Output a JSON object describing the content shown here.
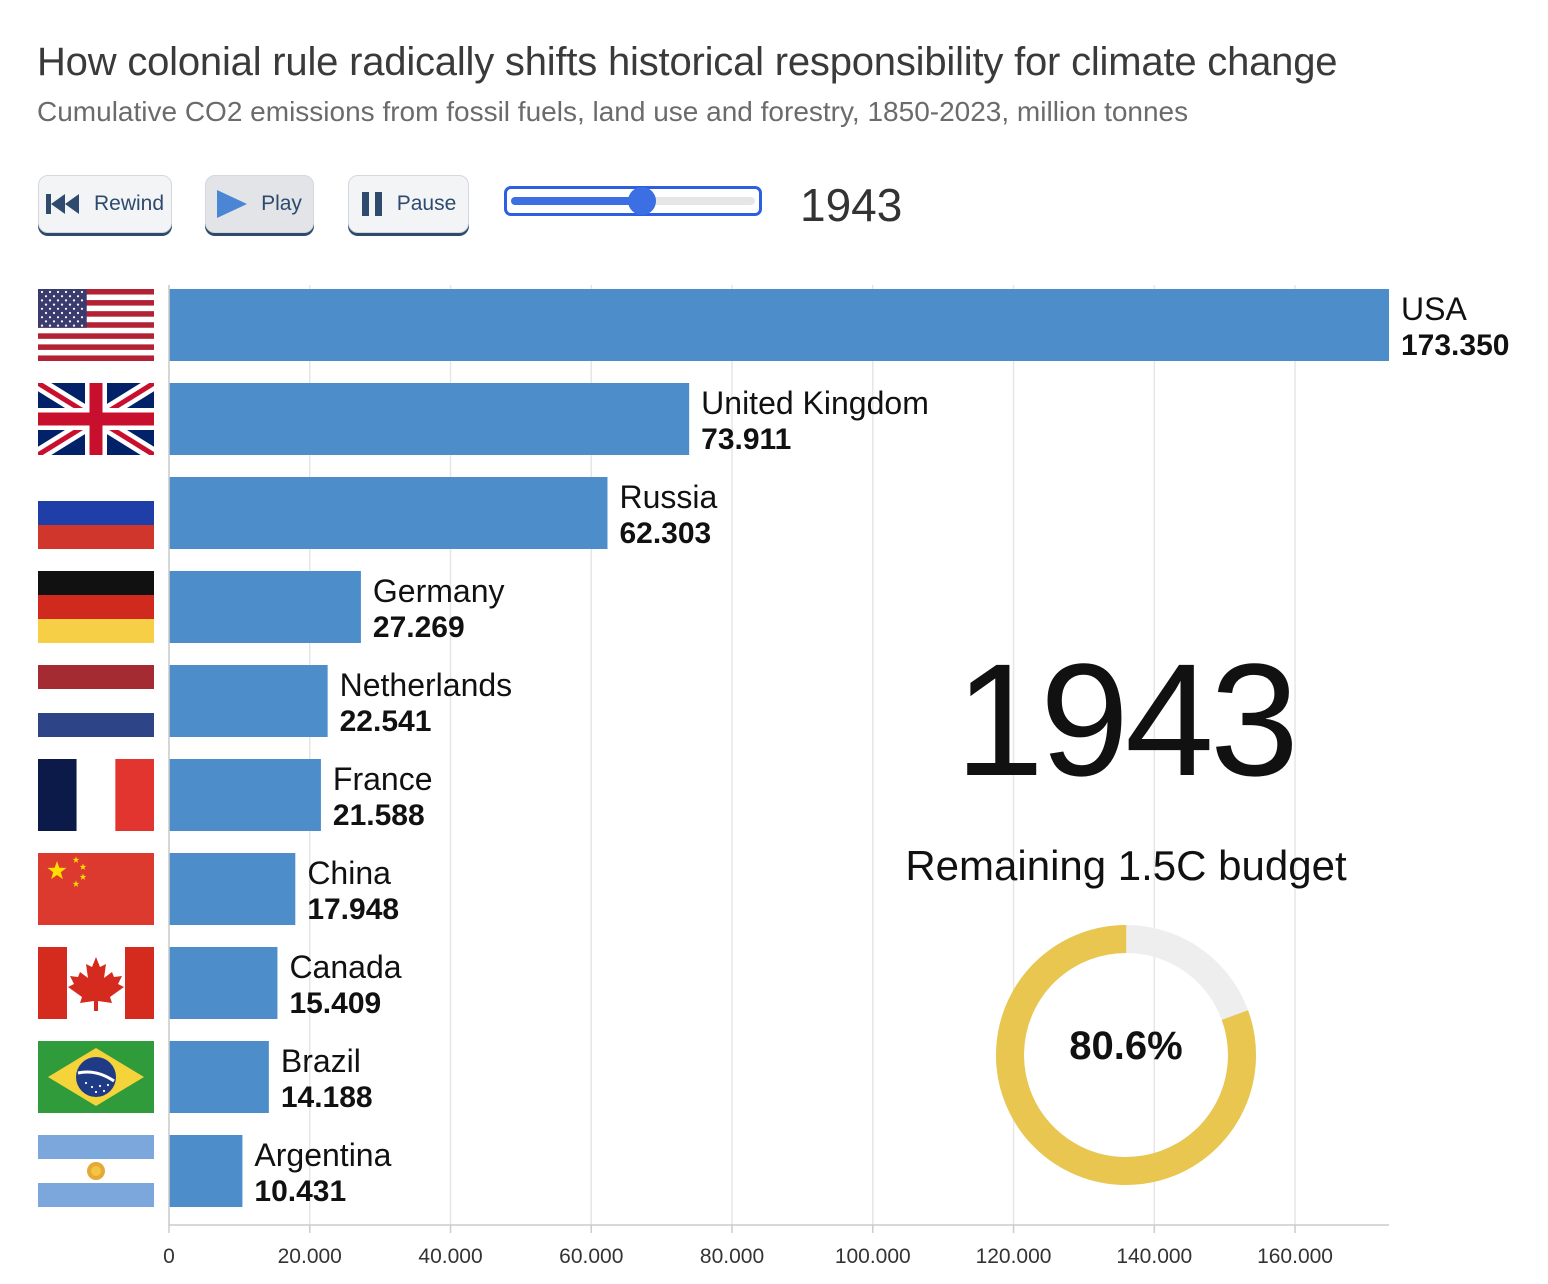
{
  "header": {
    "title": "How colonial rule radically shifts historical responsibility for climate change",
    "subtitle": "Cumulative CO2 emissions from fossil fuels, land use and forestry, 1850-2023, million tonnes"
  },
  "controls": {
    "rewind_label": "Rewind",
    "play_label": "Play",
    "pause_label": "Pause",
    "slider_fraction": 0.54,
    "year": "1943"
  },
  "overlay": {
    "year": "1943",
    "budget_label": "Remaining 1.5C budget",
    "budget_percent_text": "80.6%",
    "budget_percent": 80.6
  },
  "colors": {
    "bar": "#4c8dca",
    "grid": "#e6e6e6",
    "axis": "#cccccc",
    "donut": "#e8c64f",
    "donut_rest": "#eeeeee",
    "slider": "#3b6fe3"
  },
  "chart_data": {
    "type": "bar",
    "orientation": "horizontal",
    "title": "How colonial rule radically shifts historical responsibility for climate change",
    "subtitle": "Cumulative CO2 emissions from fossil fuels, land use and forestry, 1850-2023, million tonnes",
    "categories": [
      "USA",
      "United Kingdom",
      "Russia",
      "Germany",
      "Netherlands",
      "France",
      "China",
      "Canada",
      "Brazil",
      "Argentina"
    ],
    "values": [
      173350,
      73911,
      62303,
      27269,
      22541,
      21588,
      17948,
      15409,
      14188,
      10431
    ],
    "value_labels": [
      "173.350",
      "73.911",
      "62.303",
      "27.269",
      "22.541",
      "21.588",
      "17.948",
      "15.409",
      "14.188",
      "10.431"
    ],
    "xlim": [
      0,
      173350
    ],
    "x_ticks": [
      0,
      20000,
      40000,
      60000,
      80000,
      100000,
      120000,
      140000,
      160000
    ],
    "x_tick_labels": [
      "0",
      "20.000",
      "40.000",
      "60.000",
      "80.000",
      "100.000",
      "120.000",
      "140.000",
      "160.000"
    ],
    "grid": true,
    "flags": [
      "us-flag-icon",
      "uk-flag-icon",
      "russia-flag-icon",
      "germany-flag-icon",
      "netherlands-flag-icon",
      "france-flag-icon",
      "china-flag-icon",
      "canada-flag-icon",
      "brazil-flag-icon",
      "argentina-flag-icon"
    ]
  }
}
